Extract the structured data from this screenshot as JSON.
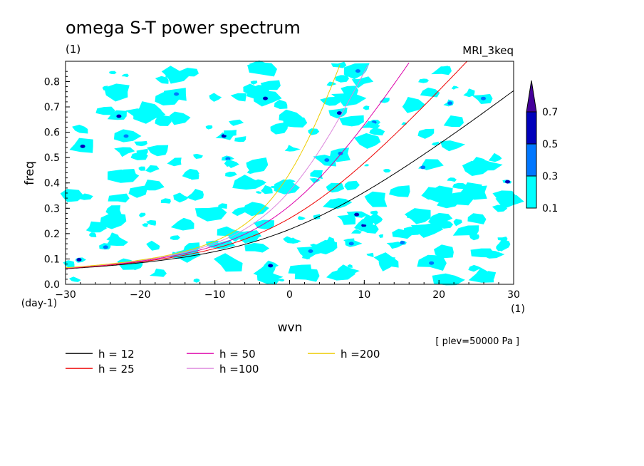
{
  "chart_data": {
    "type": "contour",
    "title": "omega S-T power spectrum",
    "subtitle_left": "(1)",
    "subtitle_right": "MRI_3keq",
    "xlabel": "wvn",
    "ylabel": "freq",
    "x_unit_label": "(1)",
    "y_unit_label": "(day-1)",
    "annotation": "[ plev=50000 Pa ]",
    "xlim": [
      -30,
      30
    ],
    "ylim": [
      0,
      0.88
    ],
    "x_ticks": [
      -30,
      -20,
      -10,
      0,
      10,
      20,
      30
    ],
    "x_tick_labels": [
      "−30",
      "−20",
      "−10",
      "0",
      "10",
      "20",
      "30"
    ],
    "y_ticks": [
      0,
      0.1,
      0.2,
      0.3,
      0.4,
      0.5,
      0.6,
      0.7,
      0.8
    ],
    "y_tick_labels": [
      "0.0",
      "0.1",
      "0.2",
      "0.3",
      "0.4",
      "0.5",
      "0.6",
      "0.7",
      "0.8"
    ],
    "colorbar": {
      "levels": [
        0.1,
        0.3,
        0.5,
        0.7
      ],
      "labels": [
        "0.1",
        "0.3",
        "0.5",
        "0.7"
      ],
      "colors": [
        "#00ffff",
        "#0077ff",
        "#0000bb",
        "#440099"
      ]
    },
    "dispersion_curves": [
      {
        "name": "h = 12",
        "color": "#000000",
        "h": 12
      },
      {
        "name": "h = 25",
        "color": "#ee0000",
        "h": 25
      },
      {
        "name": "h = 50",
        "color": "#dd00aa",
        "h": 50
      },
      {
        "name": "h =100",
        "color": "#dd88dd",
        "h": 100
      },
      {
        "name": "h =200",
        "color": "#eecc00",
        "h": 200
      }
    ],
    "grid": false,
    "legend_position": "below plot"
  }
}
